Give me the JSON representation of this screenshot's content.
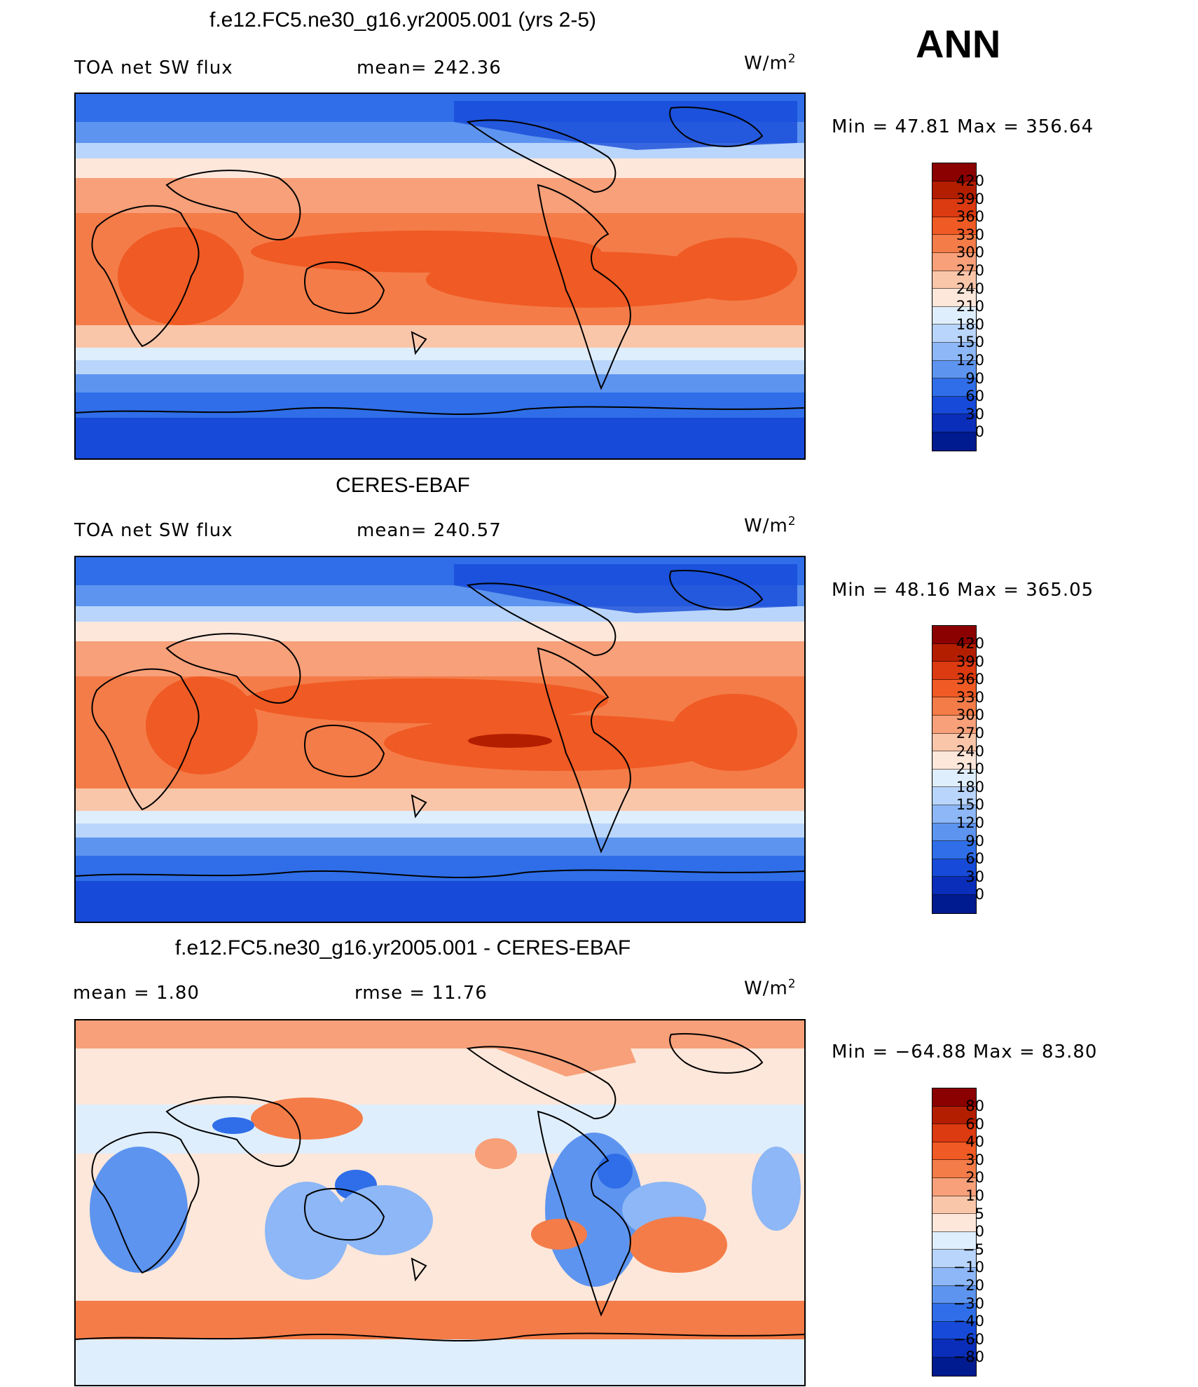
{
  "season": "ANN",
  "chart_data": [
    {
      "type": "heatmap",
      "title": "f.e12.FC5.ne30_g16.yr2005.001 (yrs 2-5)",
      "variable_label": "TOA net SW flux",
      "stat_left": "mean= 242.36",
      "units": "W/m",
      "units_sup": "2",
      "minmax": "Min =   47.81 Max = 356.64",
      "colorbar_levels": [
        "420",
        "390",
        "360",
        "330",
        "300",
        "270",
        "240",
        "210",
        "180",
        "150",
        "120",
        "90",
        "60",
        "30",
        "0"
      ],
      "colors": [
        "#8b0000",
        "#b41e00",
        "#dc3a10",
        "#f05a24",
        "#f47c48",
        "#f7a07a",
        "#fac6aa",
        "#fde7da",
        "#dfeefc",
        "#b9d5fb",
        "#8db7f6",
        "#5d94ef",
        "#2f6ee8",
        "#174ad8",
        "#0a2eb9",
        "#001a8f"
      ]
    },
    {
      "type": "heatmap",
      "title": "CERES-EBAF",
      "variable_label": "TOA net SW flux",
      "stat_left": "mean= 240.57",
      "units": "W/m",
      "units_sup": "2",
      "minmax": "Min =   48.16 Max = 365.05",
      "colorbar_levels": [
        "420",
        "390",
        "360",
        "330",
        "300",
        "270",
        "240",
        "210",
        "180",
        "150",
        "120",
        "90",
        "60",
        "30",
        "0"
      ],
      "colors": [
        "#8b0000",
        "#b41e00",
        "#dc3a10",
        "#f05a24",
        "#f47c48",
        "#f7a07a",
        "#fac6aa",
        "#fde7da",
        "#dfeefc",
        "#b9d5fb",
        "#8db7f6",
        "#5d94ef",
        "#2f6ee8",
        "#174ad8",
        "#0a2eb9",
        "#001a8f"
      ]
    },
    {
      "type": "heatmap",
      "title": "f.e12.FC5.ne30_g16.yr2005.001 - CERES-EBAF",
      "stat_left": "mean =    1.80",
      "stat_mid": "rmse =    11.76",
      "units": "W/m",
      "units_sup": "2",
      "minmax": "Min = −64.88 Max =   83.80",
      "colorbar_levels": [
        "80",
        "60",
        "40",
        "30",
        "20",
        "10",
        "5",
        "0",
        "−5",
        "−10",
        "−20",
        "−30",
        "−40",
        "−60",
        "−80"
      ],
      "colors": [
        "#8b0000",
        "#b41e00",
        "#dc3a10",
        "#f05a24",
        "#f47c48",
        "#f7a07a",
        "#fac6aa",
        "#fde7da",
        "#dfeefc",
        "#b9d5fb",
        "#8db7f6",
        "#5d94ef",
        "#2f6ee8",
        "#174ad8",
        "#0a2eb9",
        "#001a8f"
      ]
    }
  ]
}
